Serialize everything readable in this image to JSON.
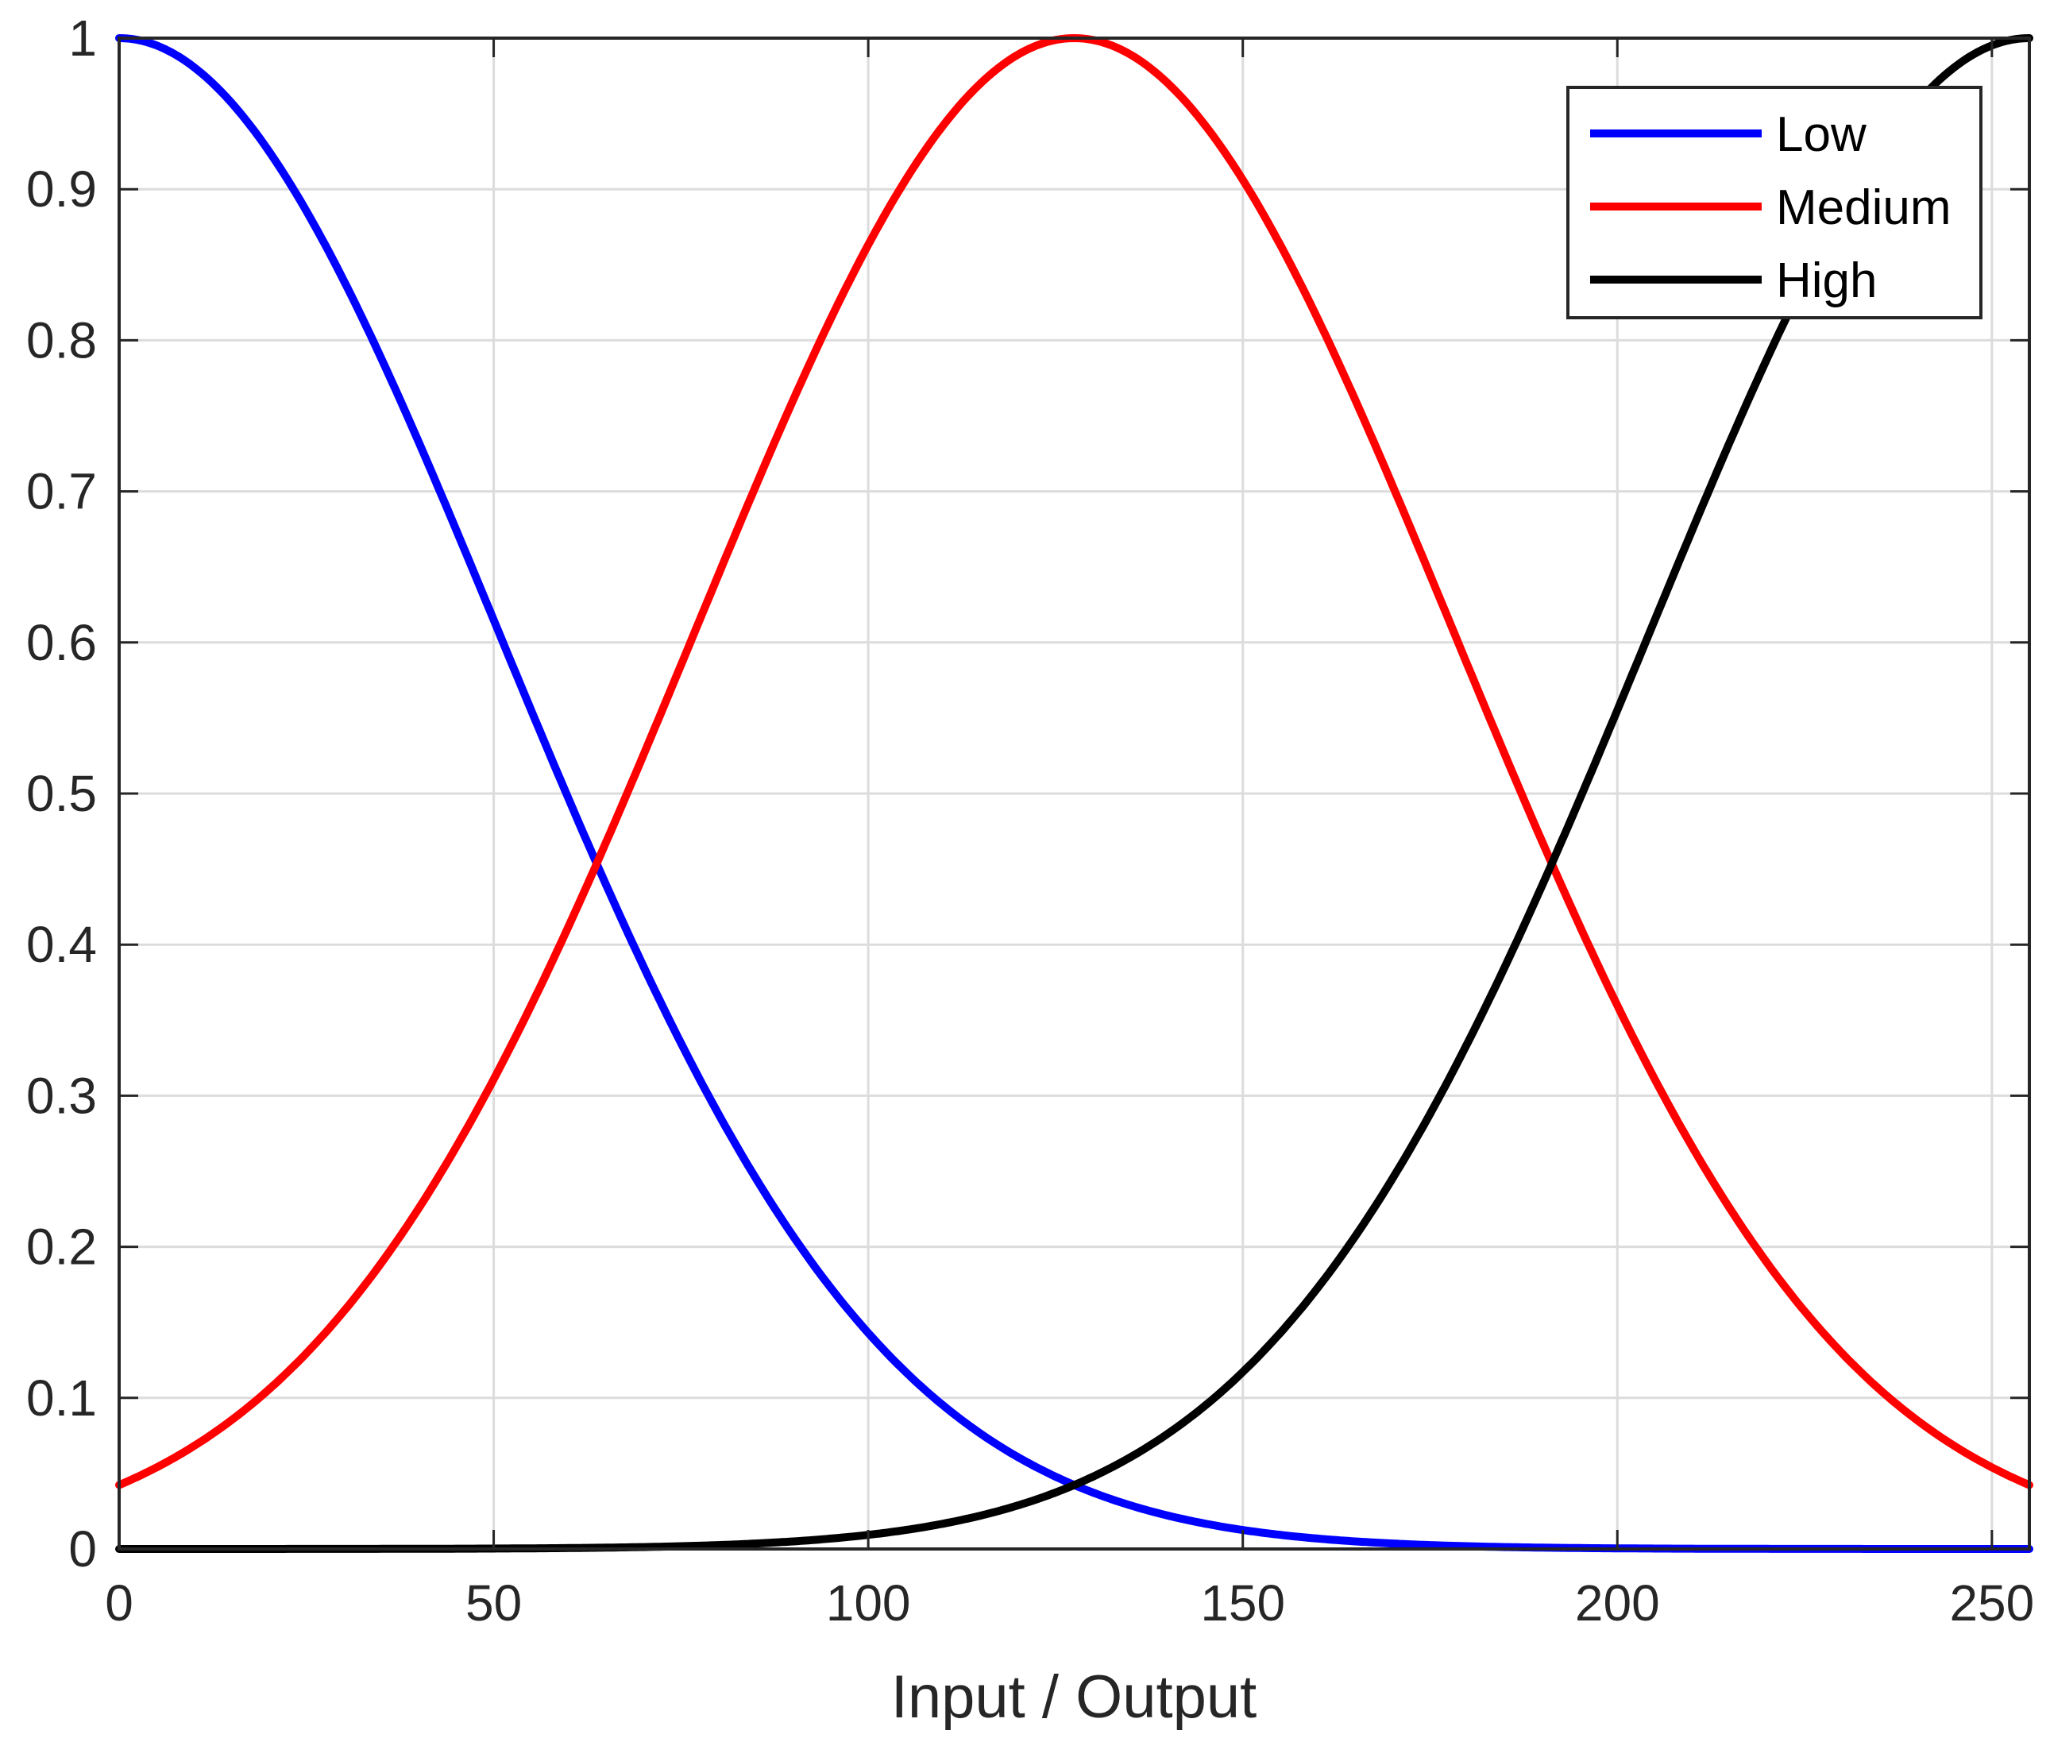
{
  "chart_data": {
    "type": "line",
    "title": "",
    "xlabel": "Input / Output",
    "ylabel": "",
    "xlim": [
      0,
      255
    ],
    "ylim": [
      0,
      1
    ],
    "xticks": [
      0,
      50,
      100,
      150,
      200,
      250
    ],
    "xtick_labels": [
      "0",
      "50",
      "100",
      "150",
      "200",
      "250"
    ],
    "yticks": [
      0,
      0.1,
      0.2,
      0.3,
      0.4,
      0.5,
      0.6,
      0.7,
      0.8,
      0.9,
      1
    ],
    "ytick_labels": [
      "0",
      "0.1",
      "0.2",
      "0.3",
      "0.4",
      "0.5",
      "0.6",
      "0.7",
      "0.8",
      "0.9",
      "1"
    ],
    "grid": true,
    "legend_position": "top-right",
    "series": [
      {
        "name": "Low",
        "color": "#0000ff",
        "function": "gaussian",
        "center": 0,
        "sigma": 50.7,
        "x": [
          0,
          25,
          50,
          64,
          75,
          100,
          128,
          150,
          200,
          255
        ],
        "values": [
          1,
          0.89,
          0.62,
          0.45,
          0.33,
          0.14,
          0.04,
          0.012,
          0.0004,
          0
        ]
      },
      {
        "name": "Medium",
        "color": "#ff0000",
        "function": "gaussian",
        "center": 127.5,
        "sigma": 50.7,
        "x": [
          0,
          25,
          50,
          64,
          75,
          100,
          127.5,
          150,
          191,
          200,
          255
        ],
        "values": [
          0.04,
          0.13,
          0.31,
          0.45,
          0.59,
          0.86,
          1,
          0.91,
          0.45,
          0.36,
          0.04
        ]
      },
      {
        "name": "High",
        "color": "#000000",
        "function": "gaussian",
        "center": 255,
        "sigma": 50.7,
        "x": [
          0,
          50,
          100,
          128,
          150,
          175,
          191,
          205,
          230,
          255
        ],
        "values": [
          0,
          0.0003,
          0.009,
          0.04,
          0.12,
          0.29,
          0.45,
          0.59,
          0.89,
          1
        ]
      }
    ]
  }
}
